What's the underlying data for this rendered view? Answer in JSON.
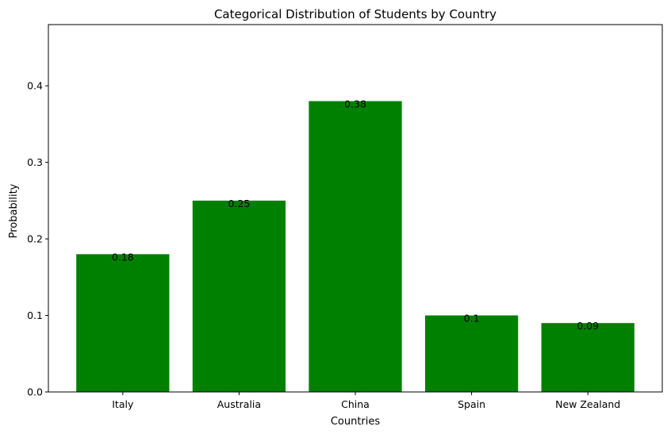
{
  "chart_data": {
    "type": "bar",
    "title": "Categorical Distribution of Students by Country",
    "xlabel": "Countries",
    "ylabel": "Probability",
    "categories": [
      "Italy",
      "Australia",
      "China",
      "Spain",
      "New Zealand"
    ],
    "values": [
      0.18,
      0.25,
      0.38,
      0.1,
      0.09
    ],
    "data_labels": [
      "0.18",
      "0.25",
      "0.38",
      "0.1",
      "0.09"
    ],
    "ylim": [
      0,
      0.48
    ],
    "yticks": [
      0.0,
      0.1,
      0.2,
      0.3,
      0.4
    ],
    "ytick_labels": [
      "0.0",
      "0.1",
      "0.2",
      "0.3",
      "0.4"
    ],
    "bar_color": "#008000",
    "grid": false,
    "legend": "none"
  }
}
